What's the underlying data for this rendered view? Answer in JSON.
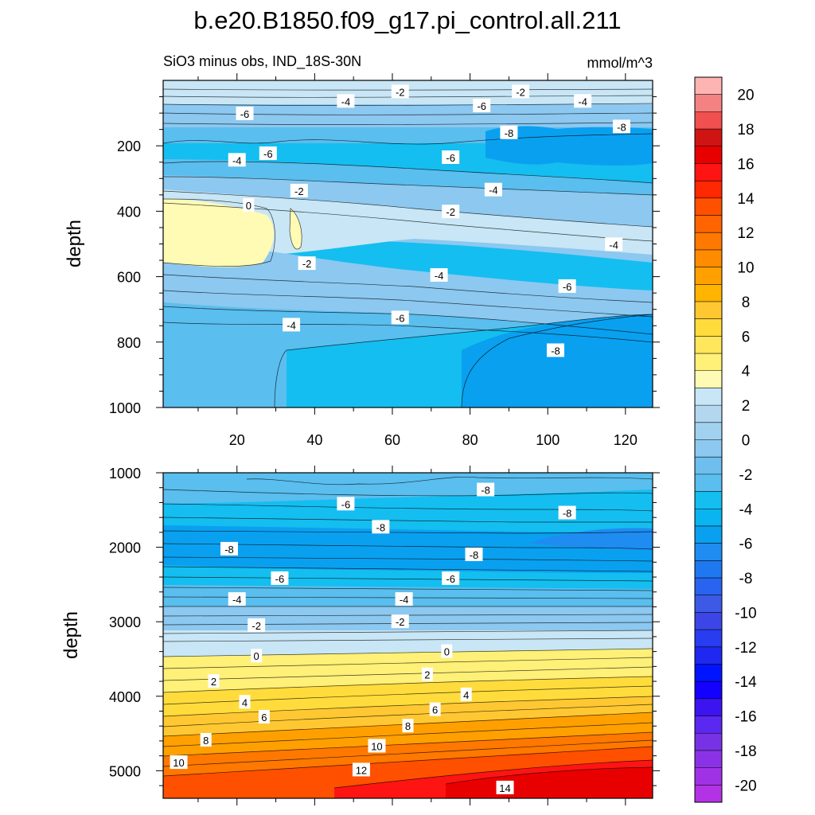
{
  "title": "b.e20.B1850.f09_g17.pi_control.all.211",
  "subtitle_left": "SiO3 minus obs, IND_18S-30N",
  "units": "mmol/m^3",
  "chart_data": [
    {
      "type": "heatmap",
      "panel": "upper",
      "ylabel": "depth",
      "xlim": [
        1,
        127
      ],
      "ylim": [
        0,
        1000
      ],
      "y_inverted": true,
      "xticks": [
        20,
        40,
        60,
        80,
        100,
        120
      ],
      "yticks": [
        200,
        400,
        600,
        800,
        1000
      ],
      "contour_labels": [
        {
          "x": 62,
          "y": 35,
          "text": "-2"
        },
        {
          "x": 93,
          "y": 35,
          "text": "-2"
        },
        {
          "x": 48,
          "y": 64,
          "text": "-4"
        },
        {
          "x": 109,
          "y": 64,
          "text": "-4"
        },
        {
          "x": 22,
          "y": 102,
          "text": "-6"
        },
        {
          "x": 83,
          "y": 78,
          "text": "-6"
        },
        {
          "x": 90,
          "y": 160,
          "text": "-8"
        },
        {
          "x": 119,
          "y": 142,
          "text": "-8"
        },
        {
          "x": 28,
          "y": 224,
          "text": "-6"
        },
        {
          "x": 20,
          "y": 244,
          "text": "-4"
        },
        {
          "x": 75,
          "y": 236,
          "text": "-6"
        },
        {
          "x": 36,
          "y": 338,
          "text": "-2"
        },
        {
          "x": 86,
          "y": 335,
          "text": "-4"
        },
        {
          "x": 23,
          "y": 382,
          "text": "0"
        },
        {
          "x": 75,
          "y": 402,
          "text": "-2"
        },
        {
          "x": 117,
          "y": 502,
          "text": "-4"
        },
        {
          "x": 38,
          "y": 560,
          "text": "-2"
        },
        {
          "x": 72,
          "y": 596,
          "text": "-4"
        },
        {
          "x": 105,
          "y": 630,
          "text": "-6"
        },
        {
          "x": 34,
          "y": 748,
          "text": "-4"
        },
        {
          "x": 62,
          "y": 726,
          "text": "-6"
        },
        {
          "x": 102,
          "y": 826,
          "text": "-8"
        }
      ]
    },
    {
      "type": "heatmap",
      "panel": "lower",
      "ylabel": "depth",
      "xlim": [
        1,
        127
      ],
      "ylim": [
        1000,
        5370
      ],
      "y_inverted": true,
      "yticks": [
        1000,
        2000,
        3000,
        4000,
        5000
      ],
      "contour_labels": [
        {
          "x": 84,
          "y": 1230,
          "text": "-8"
        },
        {
          "x": 48,
          "y": 1420,
          "text": "-6"
        },
        {
          "x": 105,
          "y": 1540,
          "text": "-8"
        },
        {
          "x": 57,
          "y": 1730,
          "text": "-8"
        },
        {
          "x": 18,
          "y": 2025,
          "text": "-8"
        },
        {
          "x": 81,
          "y": 2100,
          "text": "-8"
        },
        {
          "x": 31,
          "y": 2420,
          "text": "-6"
        },
        {
          "x": 75,
          "y": 2420,
          "text": "-6"
        },
        {
          "x": 20,
          "y": 2700,
          "text": "-4"
        },
        {
          "x": 63,
          "y": 2700,
          "text": "-4"
        },
        {
          "x": 25,
          "y": 3050,
          "text": "-2"
        },
        {
          "x": 62,
          "y": 3000,
          "text": "-2"
        },
        {
          "x": 25,
          "y": 3460,
          "text": "0"
        },
        {
          "x": 74,
          "y": 3400,
          "text": "0"
        },
        {
          "x": 14,
          "y": 3800,
          "text": "2"
        },
        {
          "x": 69,
          "y": 3710,
          "text": "2"
        },
        {
          "x": 22,
          "y": 4080,
          "text": "4"
        },
        {
          "x": 79,
          "y": 3980,
          "text": "4"
        },
        {
          "x": 27,
          "y": 4280,
          "text": "6"
        },
        {
          "x": 71,
          "y": 4180,
          "text": "6"
        },
        {
          "x": 12,
          "y": 4590,
          "text": "8"
        },
        {
          "x": 64,
          "y": 4400,
          "text": "8"
        },
        {
          "x": 56,
          "y": 4670,
          "text": "10"
        },
        {
          "x": 5,
          "y": 4890,
          "text": "10"
        },
        {
          "x": 52,
          "y": 4990,
          "text": "12"
        },
        {
          "x": 89,
          "y": 5230,
          "text": "14"
        }
      ]
    }
  ],
  "colorbar": {
    "min": -21,
    "max": 21,
    "step": 1,
    "labels": [
      "20",
      "18",
      "16",
      "14",
      "12",
      "10",
      "8",
      "6",
      "4",
      "2",
      "0",
      "-2",
      "-4",
      "-6",
      "-8",
      "-10",
      "-12",
      "-14",
      "-16",
      "-18",
      "-20"
    ],
    "colors": [
      "#ffb4b4",
      "#f58282",
      "#f05050",
      "#d01414",
      "#e80000",
      "#ff1414",
      "#ff2800",
      "#ff5000",
      "#ff6400",
      "#ff7800",
      "#ff8c00",
      "#ffa000",
      "#ffb400",
      "#ffc832",
      "#ffdc3c",
      "#ffe65a",
      "#fff078",
      "#fffab4",
      "#c8e6f5",
      "#b4d7f0",
      "#a0d2f0",
      "#8cc8f0",
      "#6ebeee",
      "#5abeee",
      "#14bef0",
      "#0ab4f0",
      "#0aa0f0",
      "#1e8cf0",
      "#1e78f0",
      "#2864f0",
      "#3c5ae6",
      "#3c46e6",
      "#283cf0",
      "#1e28f0",
      "#0014ff",
      "#1400ff",
      "#3c14f0",
      "#5a28f0",
      "#7832e6",
      "#8c32e6",
      "#a032e6",
      "#b432e6"
    ]
  }
}
